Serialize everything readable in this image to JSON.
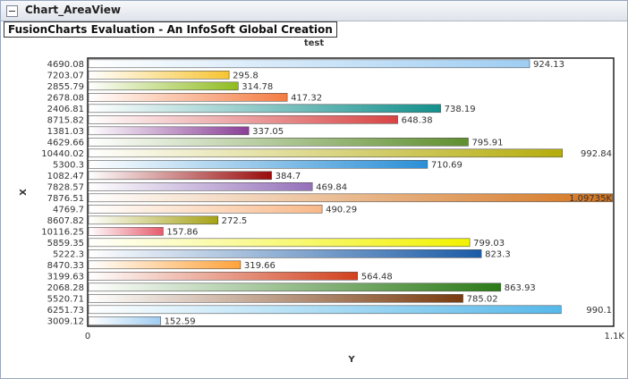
{
  "window": {
    "title": "Chart_AreaView",
    "watermark": "FusionCharts Evaluation - An InfoSoft Global Creation"
  },
  "chart_data": {
    "type": "bar",
    "orientation": "horizontal",
    "title": "test",
    "xlabel": "X",
    "ylabel": "Y",
    "categories": [
      "4690.08",
      "7203.07",
      "2855.79",
      "2678.08",
      "2406.81",
      "8715.82",
      "1381.03",
      "4629.66",
      "10440.02",
      "5300.3",
      "1082.47",
      "7828.57",
      "7876.51",
      "4769.7",
      "8607.82",
      "10116.25",
      "5859.35",
      "5222.3",
      "8470.33",
      "3199.63",
      "2068.28",
      "5520.71",
      "6251.73",
      "3009.12"
    ],
    "values": [
      924.13,
      295.8,
      314.78,
      417.32,
      738.19,
      648.38,
      337.05,
      795.91,
      992.84,
      710.69,
      384.7,
      469.84,
      1097.35,
      490.29,
      272.5,
      157.86,
      799.03,
      823.3,
      319.66,
      564.48,
      863.93,
      785.02,
      990.1,
      152.59
    ],
    "value_labels": [
      "924.13",
      "295.8",
      "314.78",
      "417.32",
      "738.19",
      "648.38",
      "337.05",
      "795.91",
      "992.84",
      "710.69",
      "384.7",
      "469.84",
      "1.09735K",
      "490.29",
      "272.5",
      "157.86",
      "799.03",
      "823.3",
      "319.66",
      "564.48",
      "863.93",
      "785.02",
      "990.1",
      "152.59"
    ],
    "colors": [
      "#9fcdf2",
      "#f7c431",
      "#8fbc1e",
      "#f47c42",
      "#13908c",
      "#d84444",
      "#8a3f96",
      "#5f8f2e",
      "#b5ad0c",
      "#2a8fd6",
      "#9a0c0c",
      "#9470ba",
      "#d4741e",
      "#f8b888",
      "#a6a216",
      "#e65a6b",
      "#f2f200",
      "#1b5ba6",
      "#ffa23a",
      "#d2401c",
      "#2b7a16",
      "#7a3b0f",
      "#56b8ea",
      "#9fcdf2"
    ],
    "ylim": [
      0,
      1100
    ],
    "y_tick_labels": [
      "0",
      "1.1K"
    ],
    "grid": false,
    "legend": "none"
  }
}
